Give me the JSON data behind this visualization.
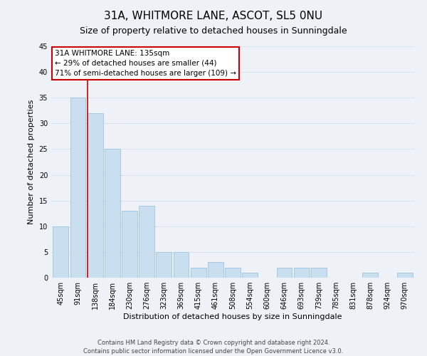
{
  "title": "31A, WHITMORE LANE, ASCOT, SL5 0NU",
  "subtitle": "Size of property relative to detached houses in Sunningdale",
  "xlabel": "Distribution of detached houses by size in Sunningdale",
  "ylabel": "Number of detached properties",
  "categories": [
    "45sqm",
    "91sqm",
    "138sqm",
    "184sqm",
    "230sqm",
    "276sqm",
    "323sqm",
    "369sqm",
    "415sqm",
    "461sqm",
    "508sqm",
    "554sqm",
    "600sqm",
    "646sqm",
    "693sqm",
    "739sqm",
    "785sqm",
    "831sqm",
    "878sqm",
    "924sqm",
    "970sqm"
  ],
  "values": [
    10,
    35,
    32,
    25,
    13,
    14,
    5,
    5,
    2,
    3,
    2,
    1,
    0,
    2,
    2,
    2,
    0,
    0,
    1,
    0,
    1
  ],
  "bar_color": "#c9dff0",
  "bar_edge_color": "#9fc3df",
  "vline_x_index": 2,
  "vline_color": "#cc0000",
  "annotation_title": "31A WHITMORE LANE: 135sqm",
  "annotation_line1": "← 29% of detached houses are smaller (44)",
  "annotation_line2": "71% of semi-detached houses are larger (109) →",
  "annotation_box_color": "#ffffff",
  "annotation_box_edge_color": "#cc0000",
  "ylim": [
    0,
    45
  ],
  "yticks": [
    0,
    5,
    10,
    15,
    20,
    25,
    30,
    35,
    40,
    45
  ],
  "bg_color": "#eef2f7",
  "grid_color": "#d8e4f0",
  "footer1": "Contains HM Land Registry data © Crown copyright and database right 2024.",
  "footer2": "Contains public sector information licensed under the Open Government Licence v3.0.",
  "title_fontsize": 11,
  "subtitle_fontsize": 9,
  "axis_label_fontsize": 8,
  "tick_fontsize": 7,
  "annotation_fontsize": 7.5,
  "footer_fontsize": 6
}
